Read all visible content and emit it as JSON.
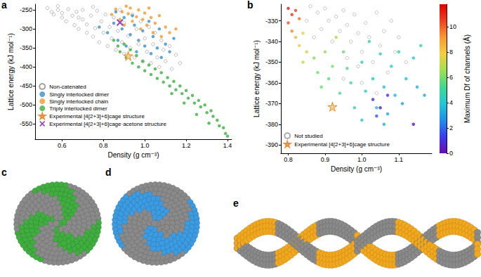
{
  "chart_data": [
    {
      "type": "scatter",
      "panel_label": "a",
      "x_label": "Density (g cm⁻³)",
      "y_label": "Lattice energy (kJ mol⁻¹)",
      "xlim": [
        0.47,
        1.42
      ],
      "ylim": [
        -590,
        -235
      ],
      "xticks": [
        0.6,
        0.8,
        {
          "value": 1,
          "label": "1.0"
        },
        1.2,
        1.4
      ],
      "yticks": [
        -250,
        -300,
        -350,
        -400,
        -450,
        -500,
        -550
      ],
      "legend": "lower left",
      "grid": false,
      "series": [
        {
          "name": "Non-catenated",
          "marker": "open_circle",
          "color": "#8c8c8c",
          "values": [
            [
              0.53,
              -245
            ],
            [
              0.55,
              -255
            ],
            [
              0.56,
              -262
            ],
            [
              0.58,
              -250
            ],
            [
              0.6,
              -270
            ],
            [
              0.6,
              -258
            ],
            [
              0.62,
              -280
            ],
            [
              0.63,
              -248
            ],
            [
              0.65,
              -265
            ],
            [
              0.66,
              -290
            ],
            [
              0.67,
              -255
            ],
            [
              0.68,
              -300
            ],
            [
              0.7,
              -275
            ],
            [
              0.7,
              -250
            ],
            [
              0.72,
              -310
            ],
            [
              0.72,
              -288
            ],
            [
              0.74,
              -265
            ],
            [
              0.75,
              -320
            ],
            [
              0.76,
              -298
            ],
            [
              0.77,
              -252
            ],
            [
              0.78,
              -335
            ],
            [
              0.79,
              -280
            ],
            [
              0.8,
              -310
            ],
            [
              0.81,
              -262
            ],
            [
              0.82,
              -345
            ],
            [
              0.83,
              -295
            ],
            [
              0.84,
              -325
            ],
            [
              0.85,
              -270
            ],
            [
              0.86,
              -355
            ],
            [
              0.87,
              -305
            ],
            [
              0.88,
              -250
            ],
            [
              0.89,
              -335
            ],
            [
              0.9,
              -365
            ],
            [
              0.9,
              -285
            ],
            [
              0.92,
              -318
            ],
            [
              0.93,
              -350
            ],
            [
              0.94,
              -262
            ],
            [
              0.95,
              -375
            ],
            [
              0.96,
              -300
            ],
            [
              0.97,
              -340
            ],
            [
              0.98,
              -280
            ],
            [
              0.99,
              -385
            ],
            [
              1.0,
              -325
            ],
            [
              1.01,
              -360
            ],
            [
              1.02,
              -295
            ],
            [
              1.03,
              -390
            ],
            [
              1.04,
              -340
            ],
            [
              1.05,
              -310
            ],
            [
              1.06,
              -375
            ],
            [
              1.07,
              -400
            ],
            [
              1.08,
              -330
            ],
            [
              1.09,
              -355
            ],
            [
              1.1,
              -385
            ],
            [
              1.12,
              -345
            ],
            [
              1.13,
              -405
            ],
            [
              1.15,
              -368
            ],
            [
              1.17,
              -390
            ],
            [
              0.58,
              -240
            ],
            [
              0.75,
              -242
            ],
            [
              0.68,
              -270
            ]
          ]
        },
        {
          "name": "Singly interlocked dimer",
          "marker": "circle",
          "color": "#3a8fc8",
          "values": [
            [
              0.78,
              -295
            ],
            [
              0.82,
              -310
            ],
            [
              0.85,
              -285
            ],
            [
              0.87,
              -330
            ],
            [
              0.89,
              -300
            ],
            [
              0.9,
              -270
            ],
            [
              0.91,
              -345
            ],
            [
              0.93,
              -315
            ],
            [
              0.95,
              -290
            ],
            [
              0.96,
              -360
            ],
            [
              0.97,
              -330
            ],
            [
              0.99,
              -305
            ],
            [
              1.0,
              -345
            ],
            [
              1.02,
              -280
            ],
            [
              1.03,
              -365
            ],
            [
              1.04,
              -320
            ],
            [
              1.06,
              -350
            ],
            [
              1.07,
              -300
            ],
            [
              1.08,
              -375
            ],
            [
              1.1,
              -340
            ],
            [
              1.12,
              -360
            ],
            [
              1.14,
              -325
            ],
            [
              0.86,
              -255
            ],
            [
              0.94,
              -265
            ]
          ]
        },
        {
          "name": "Singly interlocked chain",
          "marker": "circle",
          "color": "#f39a2c",
          "values": [
            [
              0.84,
              -262
            ],
            [
              0.86,
              -248
            ],
            [
              0.88,
              -275
            ],
            [
              0.89,
              -255
            ],
            [
              0.9,
              -290
            ],
            [
              0.92,
              -260
            ],
            [
              0.93,
              -245
            ],
            [
              0.94,
              -280
            ],
            [
              0.96,
              -268
            ],
            [
              0.97,
              -250
            ],
            [
              0.98,
              -300
            ],
            [
              0.99,
              -275
            ],
            [
              1.0,
              -258
            ],
            [
              1.01,
              -290
            ],
            [
              1.03,
              -270
            ],
            [
              1.04,
              -310
            ],
            [
              1.05,
              -285
            ],
            [
              1.07,
              -265
            ],
            [
              1.08,
              -320
            ],
            [
              1.1,
              -295
            ],
            [
              1.12,
              -310
            ],
            [
              1.15,
              -300
            ],
            [
              0.91,
              -240
            ],
            [
              1.02,
              -245
            ]
          ]
        },
        {
          "name": "Triply interlocked dimer",
          "marker": "circle",
          "color": "#3cb043",
          "values": [
            [
              0.85,
              -330
            ],
            [
              0.87,
              -345
            ],
            [
              0.88,
              -360
            ],
            [
              0.9,
              -340
            ],
            [
              0.91,
              -375
            ],
            [
              0.93,
              -355
            ],
            [
              0.94,
              -390
            ],
            [
              0.96,
              -370
            ],
            [
              0.97,
              -400
            ],
            [
              0.99,
              -385
            ],
            [
              1.0,
              -410
            ],
            [
              1.02,
              -395
            ],
            [
              1.03,
              -420
            ],
            [
              1.05,
              -405
            ],
            [
              1.06,
              -430
            ],
            [
              1.08,
              -415
            ],
            [
              1.09,
              -440
            ],
            [
              1.11,
              -428
            ],
            [
              1.12,
              -450
            ],
            [
              1.14,
              -438
            ],
            [
              1.15,
              -460
            ],
            [
              1.17,
              -450
            ],
            [
              1.18,
              -470
            ],
            [
              1.2,
              -462
            ],
            [
              1.21,
              -482
            ],
            [
              1.23,
              -475
            ],
            [
              1.24,
              -495
            ],
            [
              1.26,
              -488
            ],
            [
              1.27,
              -505
            ],
            [
              1.29,
              -500
            ],
            [
              1.3,
              -520
            ],
            [
              1.32,
              -515
            ],
            [
              1.33,
              -530
            ],
            [
              1.35,
              -540
            ],
            [
              1.36,
              -555
            ],
            [
              1.38,
              -560
            ],
            [
              1.39,
              -575
            ],
            [
              1.4,
              -582
            ],
            [
              1.31,
              -548
            ],
            [
              1.25,
              -525
            ],
            [
              1.19,
              -495
            ],
            [
              1.13,
              -470
            ]
          ]
        },
        {
          "name": "Experimental [4[2+3]+6]cage structure",
          "marker": "star",
          "color": "#f7c26b",
          "values": [
            [
              0.92,
              -371
            ]
          ]
        },
        {
          "name": "Experimental [4[2+3]+6]cage·acetone structure",
          "marker": "cross",
          "color": "#7b1fa2",
          "values": [
            [
              0.88,
              -283
            ]
          ]
        }
      ]
    },
    {
      "type": "scatter",
      "panel_label": "b",
      "x_label": "Density (g cm⁻³)",
      "y_label": "Lattice energy (kJ mol⁻¹)",
      "xlim": [
        0.78,
        1.19
      ],
      "ylim": [
        -394,
        -322
      ],
      "xticks": [
        0.8,
        0.9,
        {
          "value": 1,
          "label": "1.0"
        },
        1.1
      ],
      "yticks": [
        -330,
        -340,
        -350,
        -360,
        -370,
        -380,
        -390
      ],
      "legend": "lower left",
      "grid": false,
      "colorbar": {
        "label": "Maximum Df of channels (Å)",
        "range": [
          0,
          11.8
        ],
        "ticks": [
          0,
          2,
          4,
          6,
          8,
          10
        ]
      },
      "series": [
        {
          "name": "Not studied",
          "marker": "open_circle",
          "color": "#9a9a9a",
          "values": [
            [
              0.86,
              -323
            ],
            [
              0.88,
              -326
            ],
            [
              0.9,
              -324
            ],
            [
              0.91,
              -330
            ],
            [
              0.93,
              -328
            ],
            [
              0.94,
              -335
            ],
            [
              0.95,
              -325
            ],
            [
              0.96,
              -332
            ],
            [
              0.97,
              -340
            ],
            [
              0.98,
              -327
            ],
            [
              0.99,
              -336
            ],
            [
              1.0,
              -345
            ],
            [
              1.01,
              -331
            ],
            [
              1.02,
              -338
            ],
            [
              1.03,
              -350
            ],
            [
              1.04,
              -326
            ],
            [
              1.05,
              -342
            ],
            [
              1.06,
              -335
            ],
            [
              1.07,
              -355
            ],
            [
              1.08,
              -330
            ],
            [
              1.09,
              -345
            ],
            [
              1.1,
              -338
            ],
            [
              0.89,
              -334
            ],
            [
              0.92,
              -340
            ],
            [
              0.96,
              -348
            ],
            [
              1.0,
              -360
            ],
            [
              1.04,
              -365
            ],
            [
              0.87,
              -338
            ],
            [
              0.85,
              -330
            ],
            [
              1.12,
              -350
            ],
            [
              0.95,
              -358
            ],
            [
              0.99,
              -352
            ]
          ]
        },
        {
          "marker": "circle",
          "values": [
            [
              0.8,
              -324
            ],
            [
              0.81,
              -327
            ],
            [
              0.82,
              -325
            ],
            [
              0.8,
              -331
            ],
            [
              0.83,
              -329
            ],
            [
              0.81,
              -335
            ],
            [
              0.82,
              -338
            ],
            [
              0.83,
              -342
            ],
            [
              0.84,
              -336
            ],
            [
              0.85,
              -345
            ],
            [
              0.84,
              -350
            ],
            [
              0.87,
              -348
            ],
            [
              0.88,
              -355
            ],
            [
              0.89,
              -362
            ],
            [
              0.9,
              -345
            ],
            [
              0.91,
              -358
            ],
            [
              0.92,
              -352
            ],
            [
              0.94,
              -365
            ],
            [
              0.95,
              -345
            ],
            [
              0.97,
              -360
            ],
            [
              0.98,
              -372
            ],
            [
              0.93,
              -338
            ],
            [
              0.96,
              -353
            ],
            [
              1.0,
              -350
            ],
            [
              1.01,
              -364
            ],
            [
              1.02,
              -340
            ],
            [
              1.03,
              -358
            ],
            [
              1.04,
              -372
            ],
            [
              1.05,
              -346
            ],
            [
              1.06,
              -362
            ],
            [
              1.07,
              -375
            ],
            [
              1.08,
              -352
            ],
            [
              1.09,
              -366
            ],
            [
              1.1,
              -345
            ],
            [
              1.11,
              -370
            ],
            [
              1.12,
              -358
            ],
            [
              1.14,
              -348
            ],
            [
              1.15,
              -362
            ],
            [
              1.16,
              -342
            ],
            [
              1.17,
              -366
            ],
            [
              1.06,
              -380
            ],
            [
              1.0,
              -378
            ],
            [
              1.03,
              -368
            ],
            [
              1.05,
              -372
            ],
            [
              1.07,
              -366
            ],
            [
              1.14,
              -380
            ],
            [
              1.04,
              -376
            ]
          ],
          "max_df": [
            11.2,
            10.8,
            10.5,
            10.2,
            9.8,
            9.5,
            8.5,
            8.0,
            7.8,
            7.2,
            7.0,
            6.2,
            6.0,
            5.8,
            6.4,
            5.6,
            6.0,
            5.4,
            5.8,
            5.2,
            5.0,
            6.6,
            5.5,
            4.5,
            4.2,
            4.8,
            4.0,
            3.6,
            4.4,
            3.8,
            3.2,
            4.1,
            3.5,
            4.6,
            3.0,
            3.8,
            4.2,
            3.4,
            4.5,
            3.2,
            3.4,
            4.0,
            0.8,
            0.4,
            1.2,
            0.3,
            1.8
          ]
        },
        {
          "name": "Experimental [4[2+3]+6]cage structure",
          "marker": "star",
          "color": "#f7c26b",
          "values": [
            [
              0.92,
              -371.5
            ]
          ]
        }
      ]
    }
  ],
  "images": [
    {
      "label": "c"
    },
    {
      "label": "d"
    },
    {
      "label": "e"
    }
  ]
}
